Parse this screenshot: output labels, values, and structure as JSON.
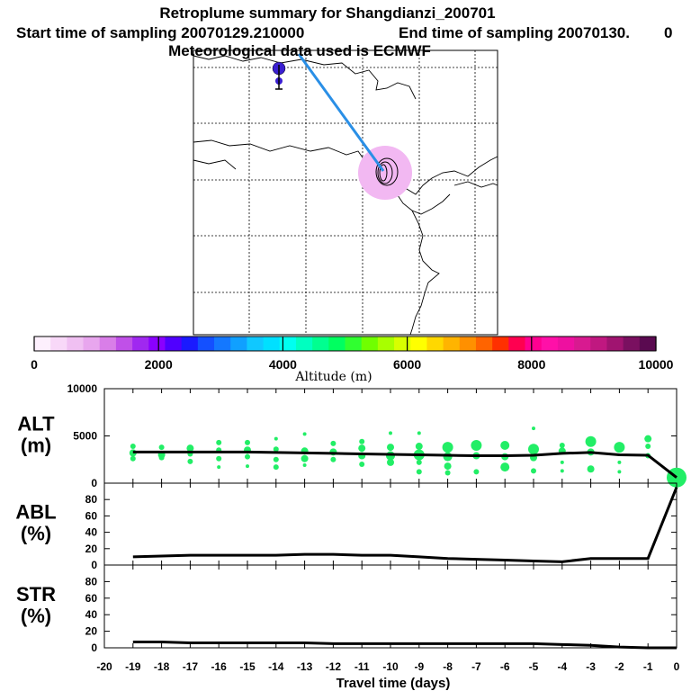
{
  "titles": {
    "line1": "Retroplume summary for Shangdianzi_200701",
    "line2_start": "Start time of sampling 20070129.210000",
    "line2_end": "End time of sampling 20070130.",
    "line2_tail": "0",
    "line3": "Meteorological data used is ECMWF"
  },
  "colors": {
    "trajectory": "#2a8fe6",
    "cluster_fill": "#f2b8f2",
    "dot": "#22ee66",
    "marker": "#3a1fd0",
    "line": "#000000"
  },
  "chart_data": [
    {
      "type": "colorbar",
      "title": "Altitude (m)",
      "range": [
        0,
        10000
      ],
      "tick_labels": [
        "0",
        "2000",
        "4000",
        "6000",
        "8000",
        "10000"
      ],
      "colors": [
        "#fdf0fd",
        "#f8d8f8",
        "#f0c0f2",
        "#e8a6ee",
        "#d97ee8",
        "#c050e8",
        "#a028f0",
        "#8a00ff",
        "#5000ff",
        "#1a1aff",
        "#1450ff",
        "#1478ff",
        "#10a0ff",
        "#10c8ff",
        "#00e0ff",
        "#00fff0",
        "#00ffc0",
        "#00ff90",
        "#00ff60",
        "#30ff30",
        "#70ff00",
        "#a8ff00",
        "#d8ff00",
        "#ffff00",
        "#ffd800",
        "#ffb400",
        "#ff9000",
        "#ff6400",
        "#ff3000",
        "#ff0050",
        "#ff0090",
        "#ff10a8",
        "#ee10a0",
        "#d81a90",
        "#c01880",
        "#a01470",
        "#7a1060",
        "#5a0a50"
      ]
    },
    {
      "type": "scatter+line",
      "name": "ALT",
      "ylabel": [
        "ALT",
        "(m)"
      ],
      "xlim": [
        -20,
        0
      ],
      "ylim": [
        0,
        10000
      ],
      "y_tick_labels": [
        "0",
        "5000",
        "10000"
      ],
      "median_line": {
        "x": [
          -19,
          -18,
          -17,
          -16,
          -15,
          -14,
          -13,
          -12,
          -11,
          -10,
          -9,
          -8,
          -7,
          -6,
          -5,
          -4,
          -3,
          -2,
          -1,
          0
        ],
        "y": [
          3300,
          3300,
          3300,
          3300,
          3300,
          3250,
          3200,
          3150,
          3100,
          3050,
          3000,
          2950,
          2900,
          2900,
          2950,
          3150,
          3250,
          3000,
          2950,
          600
        ]
      },
      "points": [
        {
          "x": -19,
          "y": 3900,
          "r": 3
        },
        {
          "x": -19,
          "y": 3200,
          "r": 4
        },
        {
          "x": -19,
          "y": 2600,
          "r": 3
        },
        {
          "x": -18,
          "y": 3800,
          "r": 3
        },
        {
          "x": -18,
          "y": 3000,
          "r": 4
        },
        {
          "x": -18,
          "y": 2700,
          "r": 3
        },
        {
          "x": -17,
          "y": 3700,
          "r": 4
        },
        {
          "x": -17,
          "y": 3100,
          "r": 3
        },
        {
          "x": -17,
          "y": 2300,
          "r": 3
        },
        {
          "x": -16,
          "y": 4300,
          "r": 3
        },
        {
          "x": -16,
          "y": 3500,
          "r": 3
        },
        {
          "x": -16,
          "y": 2600,
          "r": 3
        },
        {
          "x": -16,
          "y": 1700,
          "r": 2
        },
        {
          "x": -15,
          "y": 4300,
          "r": 3
        },
        {
          "x": -15,
          "y": 3500,
          "r": 4
        },
        {
          "x": -15,
          "y": 2800,
          "r": 3
        },
        {
          "x": -15,
          "y": 1800,
          "r": 2
        },
        {
          "x": -14,
          "y": 4700,
          "r": 2
        },
        {
          "x": -14,
          "y": 3600,
          "r": 3
        },
        {
          "x": -14,
          "y": 2500,
          "r": 3
        },
        {
          "x": -14,
          "y": 1700,
          "r": 3
        },
        {
          "x": -13,
          "y": 5200,
          "r": 2
        },
        {
          "x": -13,
          "y": 3400,
          "r": 4
        },
        {
          "x": -13,
          "y": 2600,
          "r": 4
        },
        {
          "x": -13,
          "y": 1900,
          "r": 2
        },
        {
          "x": -12,
          "y": 4200,
          "r": 3
        },
        {
          "x": -12,
          "y": 3300,
          "r": 4
        },
        {
          "x": -12,
          "y": 2500,
          "r": 3
        },
        {
          "x": -11,
          "y": 4400,
          "r": 3
        },
        {
          "x": -11,
          "y": 3700,
          "r": 4
        },
        {
          "x": -11,
          "y": 2900,
          "r": 4
        },
        {
          "x": -11,
          "y": 2000,
          "r": 3
        },
        {
          "x": -10,
          "y": 5300,
          "r": 2
        },
        {
          "x": -10,
          "y": 3800,
          "r": 4
        },
        {
          "x": -10,
          "y": 2900,
          "r": 5
        },
        {
          "x": -10,
          "y": 2200,
          "r": 4
        },
        {
          "x": -9,
          "y": 5300,
          "r": 2
        },
        {
          "x": -9,
          "y": 3900,
          "r": 4
        },
        {
          "x": -9,
          "y": 3000,
          "r": 6
        },
        {
          "x": -9,
          "y": 2200,
          "r": 3
        },
        {
          "x": -9,
          "y": 1200,
          "r": 3
        },
        {
          "x": -8,
          "y": 3800,
          "r": 6
        },
        {
          "x": -8,
          "y": 2800,
          "r": 5
        },
        {
          "x": -8,
          "y": 1800,
          "r": 4
        },
        {
          "x": -8,
          "y": 1100,
          "r": 3
        },
        {
          "x": -7,
          "y": 4000,
          "r": 6
        },
        {
          "x": -7,
          "y": 2900,
          "r": 4
        },
        {
          "x": -7,
          "y": 1200,
          "r": 3
        },
        {
          "x": -6,
          "y": 4000,
          "r": 5
        },
        {
          "x": -6,
          "y": 2800,
          "r": 4
        },
        {
          "x": -6,
          "y": 1700,
          "r": 5
        },
        {
          "x": -5,
          "y": 5800,
          "r": 2
        },
        {
          "x": -5,
          "y": 3600,
          "r": 6
        },
        {
          "x": -5,
          "y": 2700,
          "r": 4
        },
        {
          "x": -5,
          "y": 1300,
          "r": 3
        },
        {
          "x": -4,
          "y": 4000,
          "r": 3
        },
        {
          "x": -4,
          "y": 3400,
          "r": 4
        },
        {
          "x": -4,
          "y": 2200,
          "r": 2
        },
        {
          "x": -4,
          "y": 1300,
          "r": 2
        },
        {
          "x": -3,
          "y": 4400,
          "r": 6
        },
        {
          "x": -3,
          "y": 3300,
          "r": 4
        },
        {
          "x": -3,
          "y": 1500,
          "r": 4
        },
        {
          "x": -2,
          "y": 3800,
          "r": 6
        },
        {
          "x": -2,
          "y": 2200,
          "r": 2
        },
        {
          "x": -2,
          "y": 1200,
          "r": 2
        },
        {
          "x": -1,
          "y": 4700,
          "r": 4
        },
        {
          "x": -1,
          "y": 3900,
          "r": 3
        },
        {
          "x": -1,
          "y": 2900,
          "r": 3
        },
        {
          "x": 0,
          "y": 600,
          "r": 11
        }
      ]
    },
    {
      "type": "line",
      "name": "ABL",
      "ylabel": [
        "ABL",
        "(%)"
      ],
      "xlim": [
        -20,
        0
      ],
      "ylim": [
        0,
        100
      ],
      "y_tick_labels": [
        "0",
        "20",
        "40",
        "60",
        "80"
      ],
      "x": [
        -19,
        -18,
        -17,
        -16,
        -15,
        -14,
        -13,
        -12,
        -11,
        -10,
        -9,
        -8,
        -7,
        -6,
        -5,
        -4,
        -3,
        -2,
        -1,
        0
      ],
      "y": [
        10,
        11,
        12,
        12,
        12,
        12,
        13,
        13,
        12,
        12,
        10,
        8,
        7,
        6,
        5,
        4,
        8,
        8,
        8,
        95
      ]
    },
    {
      "type": "line",
      "name": "STR",
      "ylabel": [
        "STR",
        "(%)"
      ],
      "xlim": [
        -20,
        0
      ],
      "ylim": [
        0,
        100
      ],
      "y_tick_labels": [
        "0",
        "20",
        "40",
        "60",
        "80"
      ],
      "xlabel": "Travel time (days)",
      "x_tick_labels": [
        "-20",
        "-19",
        "-18",
        "-17",
        "-16",
        "-15",
        "-14",
        "-13",
        "-12",
        "-11",
        "-10",
        "-9",
        "-8",
        "-7",
        "-6",
        "-5",
        "-4",
        "-3",
        "-2",
        "-1",
        "0"
      ],
      "x": [
        -19,
        -18,
        -17,
        -16,
        -15,
        -14,
        -13,
        -12,
        -11,
        -10,
        -9,
        -8,
        -7,
        -6,
        -5,
        -4,
        -3,
        -2,
        -1,
        0
      ],
      "y": [
        7,
        7,
        6,
        6,
        6,
        6,
        6,
        5,
        5,
        5,
        5,
        5,
        5,
        5,
        5,
        4,
        3,
        1,
        0,
        0
      ]
    }
  ]
}
